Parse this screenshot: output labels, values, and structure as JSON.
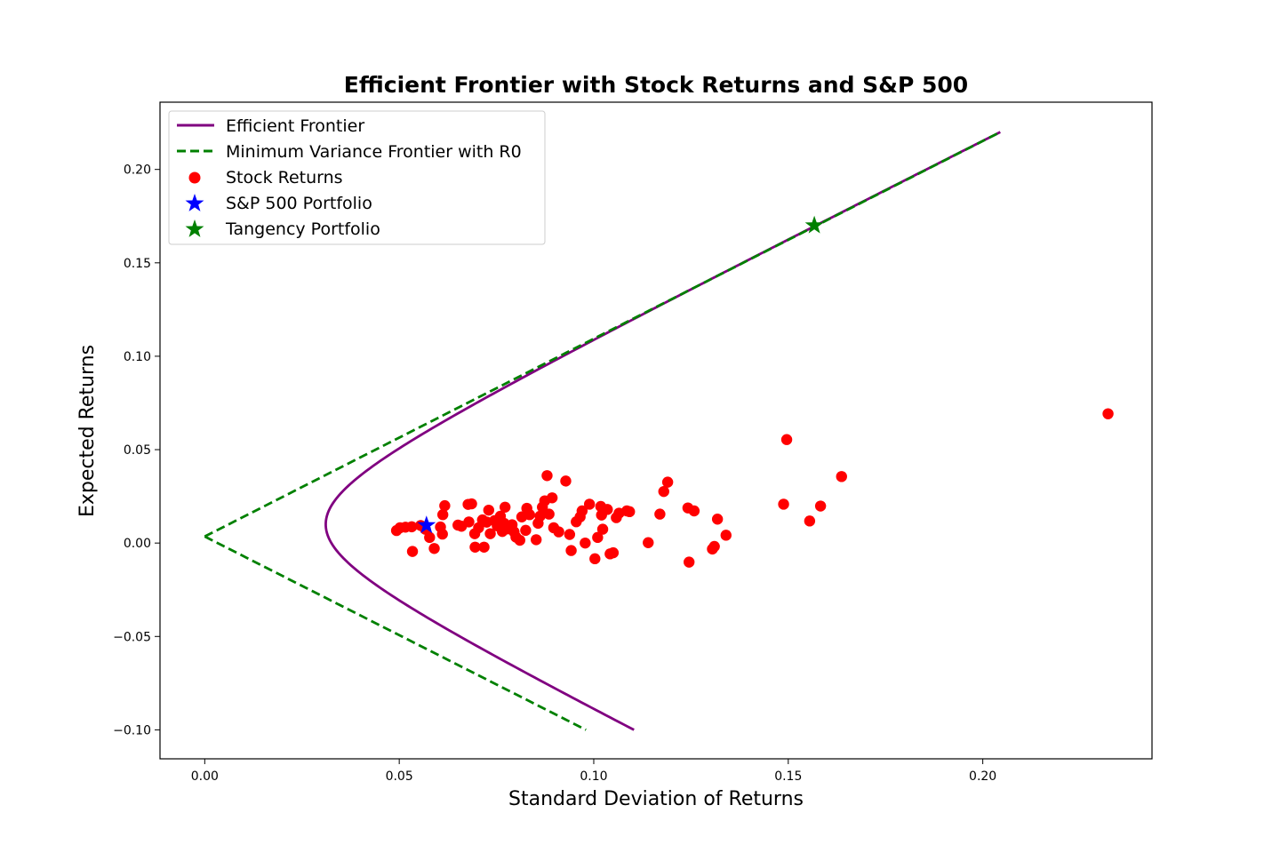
{
  "chart_data": {
    "type": "scatter",
    "title": "Efficient Frontier with Stock Returns and S&P 500",
    "xlabel": "Standard Deviation of Returns",
    "ylabel": "Expected Returns",
    "xlim": [
      -0.0115,
      0.2435
    ],
    "ylim": [
      -0.1155,
      0.236
    ],
    "xticks": [
      0.0,
      0.05,
      0.1,
      0.15,
      0.2
    ],
    "xtick_labels": [
      "0.00",
      "0.05",
      "0.10",
      "0.15",
      "0.20"
    ],
    "yticks": [
      -0.1,
      -0.05,
      0.0,
      0.05,
      0.1,
      0.15,
      0.2
    ],
    "ytick_labels": [
      "−0.10",
      "−0.05",
      "0.00",
      "0.05",
      "0.10",
      "0.15",
      "0.20"
    ],
    "grid": false,
    "legend_position": "top-left",
    "legend": [
      {
        "label": "Efficient Frontier",
        "marker": "line",
        "color": "#800080"
      },
      {
        "label": "Minimum Variance Frontier with R0",
        "marker": "dashed-line",
        "color": "#008000"
      },
      {
        "label": "Stock Returns",
        "marker": "circle",
        "color": "#ff0000"
      },
      {
        "label": "S&P 500 Portfolio",
        "marker": "star",
        "color": "#0000ff"
      },
      {
        "label": "Tangency Portfolio",
        "marker": "star",
        "color": "#008000"
      }
    ],
    "efficient_frontier": {
      "name": "Efficient Frontier",
      "color": "#800080",
      "min_variance_point": [
        0.0311,
        0.01
      ],
      "y_range": [
        -0.1,
        0.22
      ],
      "points": [
        [
          0.1105,
          -0.1
        ],
        [
          0.072,
          -0.05
        ],
        [
          0.0437,
          -0.02
        ],
        [
          0.034,
          0.0
        ],
        [
          0.0311,
          0.01
        ],
        [
          0.034,
          0.02
        ],
        [
          0.0462,
          0.04
        ],
        [
          0.064,
          0.06
        ],
        [
          0.0828,
          0.08
        ],
        [
          0.1015,
          0.1
        ],
        [
          0.1205,
          0.12
        ],
        [
          0.1475,
          0.15
        ],
        [
          0.1745,
          0.18
        ],
        [
          0.2045,
          0.22
        ]
      ]
    },
    "mvf_r0": {
      "name": "Minimum Variance Frontier with R0",
      "color": "#008000",
      "points_upper": [
        [
          0.0,
          0.0035
        ],
        [
          0.2045,
          0.22
        ]
      ],
      "points_lower": [
        [
          0.0,
          0.0035
        ],
        [
          0.098,
          -0.1
        ]
      ]
    },
    "stock_returns": {
      "name": "Stock Returns",
      "color": "#ff0000",
      "points": [
        [
          0.0493,
          0.0067
        ],
        [
          0.0502,
          0.0082
        ],
        [
          0.0516,
          0.0085
        ],
        [
          0.0532,
          0.0087
        ],
        [
          0.0534,
          -0.0045
        ],
        [
          0.0555,
          0.0094
        ],
        [
          0.0567,
          0.0074
        ],
        [
          0.0578,
          0.003
        ],
        [
          0.059,
          -0.0029
        ],
        [
          0.0606,
          0.0086
        ],
        [
          0.0611,
          0.0048
        ],
        [
          0.0612,
          0.0152
        ],
        [
          0.0617,
          0.02
        ],
        [
          0.0651,
          0.0096
        ],
        [
          0.066,
          0.009
        ],
        [
          0.0677,
          0.0207
        ],
        [
          0.0679,
          0.0113
        ],
        [
          0.0686,
          0.021
        ],
        [
          0.0694,
          0.005
        ],
        [
          0.0695,
          -0.0022
        ],
        [
          0.0704,
          0.0082
        ],
        [
          0.0714,
          0.0124
        ],
        [
          0.0718,
          -0.0022
        ],
        [
          0.0725,
          0.0112
        ],
        [
          0.073,
          0.0176
        ],
        [
          0.0734,
          0.005
        ],
        [
          0.0745,
          0.012
        ],
        [
          0.0752,
          0.0092
        ],
        [
          0.076,
          0.0144
        ],
        [
          0.0765,
          0.0062
        ],
        [
          0.077,
          0.0105
        ],
        [
          0.0772,
          0.0192
        ],
        [
          0.0778,
          0.0076
        ],
        [
          0.079,
          0.0098
        ],
        [
          0.0795,
          0.006
        ],
        [
          0.08,
          0.0032
        ],
        [
          0.081,
          0.0015
        ],
        [
          0.0815,
          0.014
        ],
        [
          0.0825,
          0.0068
        ],
        [
          0.0828,
          0.0186
        ],
        [
          0.0835,
          0.0152
        ],
        [
          0.0852,
          0.0018
        ],
        [
          0.0857,
          0.0106
        ],
        [
          0.0862,
          0.0144
        ],
        [
          0.0868,
          0.0192
        ],
        [
          0.0874,
          0.0226
        ],
        [
          0.088,
          0.0361
        ],
        [
          0.0885,
          0.0155
        ],
        [
          0.0893,
          0.0242
        ],
        [
          0.0897,
          0.0082
        ],
        [
          0.091,
          0.006
        ],
        [
          0.0928,
          0.0332
        ],
        [
          0.0938,
          0.0046
        ],
        [
          0.0942,
          -0.004
        ],
        [
          0.0955,
          0.0114
        ],
        [
          0.0965,
          0.014
        ],
        [
          0.097,
          0.0172
        ],
        [
          0.0978,
          0.0
        ],
        [
          0.0989,
          0.0208
        ],
        [
          0.1003,
          -0.0084
        ],
        [
          0.101,
          0.003
        ],
        [
          0.1018,
          0.0196
        ],
        [
          0.102,
          0.015
        ],
        [
          0.1023,
          0.0074
        ],
        [
          0.1035,
          0.018
        ],
        [
          0.1042,
          -0.0058
        ],
        [
          0.105,
          -0.0052
        ],
        [
          0.1058,
          0.0136
        ],
        [
          0.1065,
          0.016
        ],
        [
          0.1085,
          0.0172
        ],
        [
          0.1092,
          0.0168
        ],
        [
          0.114,
          0.0002
        ],
        [
          0.117,
          0.0155
        ],
        [
          0.118,
          0.0276
        ],
        [
          0.119,
          0.0326
        ],
        [
          0.1242,
          0.0188
        ],
        [
          0.1245,
          -0.0102
        ],
        [
          0.1258,
          0.0172
        ],
        [
          0.1305,
          -0.0032
        ],
        [
          0.131,
          -0.0018
        ],
        [
          0.1318,
          0.0128
        ],
        [
          0.134,
          0.0042
        ],
        [
          0.1488,
          0.0208
        ],
        [
          0.1496,
          0.0554
        ],
        [
          0.1555,
          0.0118
        ],
        [
          0.1583,
          0.0198
        ],
        [
          0.1637,
          0.0356
        ],
        [
          0.2322,
          0.0692
        ]
      ]
    },
    "sp500": {
      "name": "S&P 500 Portfolio",
      "x": 0.057,
      "y": 0.0095,
      "color": "#0000ff"
    },
    "tangency": {
      "name": "Tangency Portfolio",
      "x": 0.1567,
      "y": 0.17,
      "color": "#008000"
    }
  }
}
